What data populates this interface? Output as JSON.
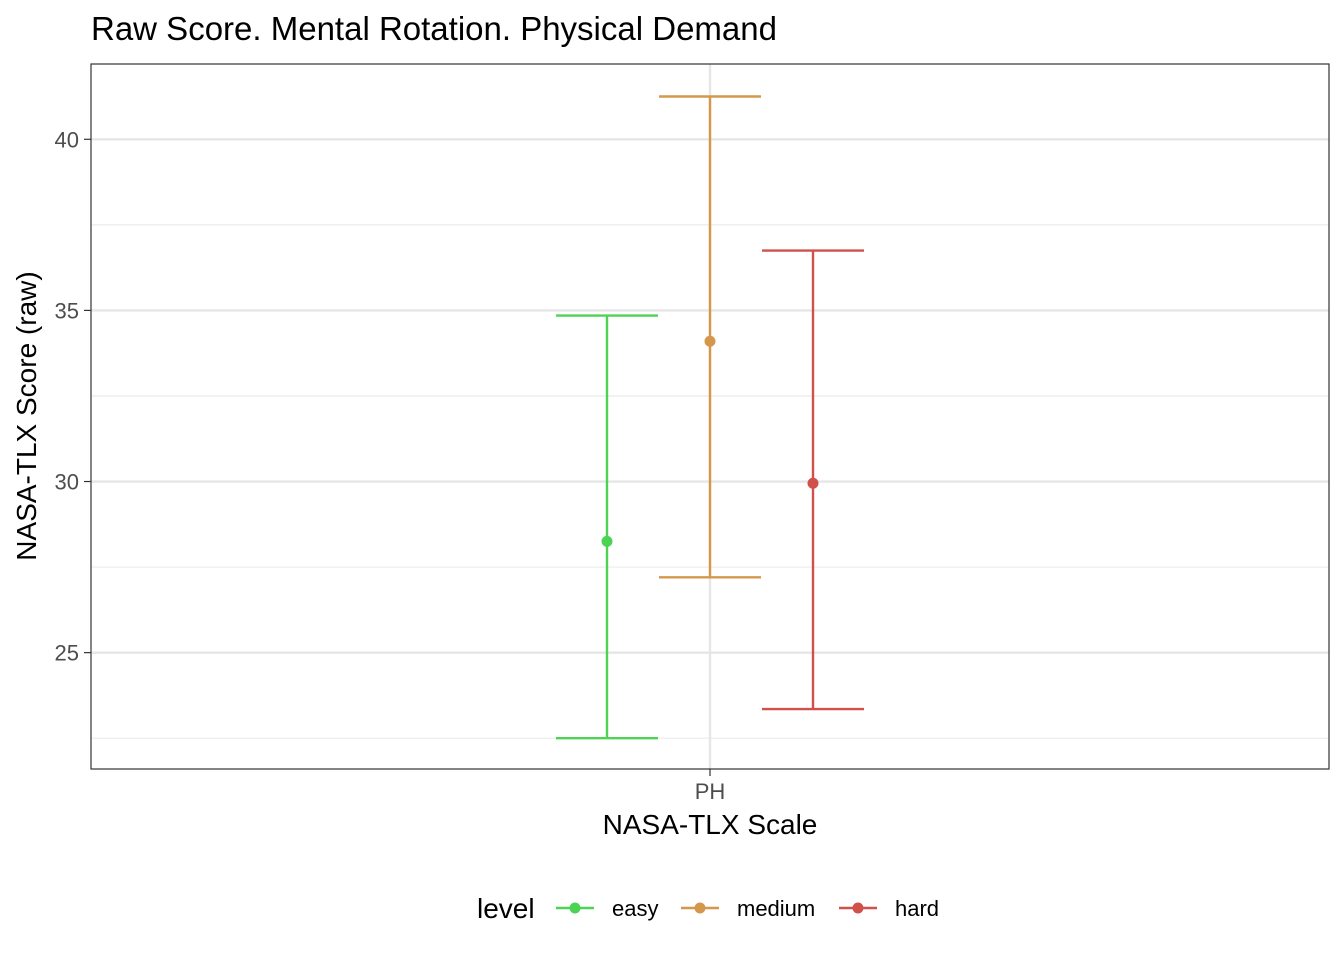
{
  "chart_data": {
    "type": "errorbar",
    "title": "Raw Score. Mental Rotation. Physical Demand",
    "xlabel": "NASA-TLX Scale",
    "ylabel": "NASA-TLX Score (raw)",
    "categories": [
      "PH"
    ],
    "ylim": [
      21.6,
      42.2
    ],
    "yticks": [
      25,
      30,
      35,
      40
    ],
    "grid": true,
    "legend": {
      "title": "level",
      "position": "bottom"
    },
    "series": [
      {
        "name": "easy",
        "color": "#4dd354",
        "mean": 28.25,
        "lower": 22.5,
        "upper": 34.85
      },
      {
        "name": "medium",
        "color": "#d4974c",
        "mean": 34.1,
        "lower": 27.2,
        "upper": 41.25
      },
      {
        "name": "hard",
        "color": "#d0504a",
        "mean": 29.95,
        "lower": 23.35,
        "upper": 36.75
      }
    ]
  }
}
